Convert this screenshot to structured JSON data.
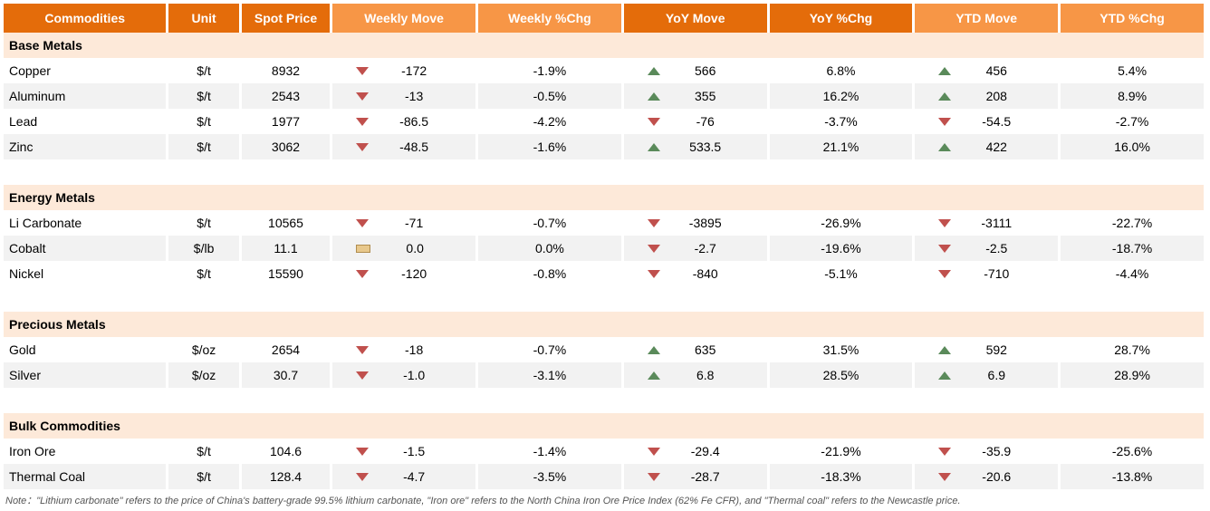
{
  "colors": {
    "header_dark": "#e46c0a",
    "header_light": "#f79646",
    "section_bg": "#fde9d9",
    "row_alt": "#f2f2f2",
    "up_arrow": "#5a8a5a",
    "down_arrow": "#c0504d",
    "flat_fill": "#e8c88c",
    "text": "#000000",
    "header_text": "#ffffff"
  },
  "headers": {
    "commodities": "Commodities",
    "unit": "Unit",
    "spot": "Spot Price",
    "wmove": "Weekly Move",
    "wpct": "Weekly %Chg",
    "ymove": "YoY Move",
    "ypct": "YoY  %Chg",
    "ytdmove": "YTD Move",
    "ytdpct": "YTD %Chg"
  },
  "sections": [
    {
      "title": "Base Metals",
      "rows": [
        {
          "name": "Copper",
          "unit": "$/t",
          "spot": "8932",
          "wmove": "-172",
          "wdir": "down",
          "wpct": "-1.9%",
          "ymove": "566",
          "ydir": "up",
          "ypct": "6.8%",
          "ytdmove": "456",
          "ytddir": "up",
          "ytdpct": "5.4%"
        },
        {
          "name": "Aluminum",
          "unit": "$/t",
          "spot": "2543",
          "wmove": "-13",
          "wdir": "down",
          "wpct": "-0.5%",
          "ymove": "355",
          "ydir": "up",
          "ypct": "16.2%",
          "ytdmove": "208",
          "ytddir": "up",
          "ytdpct": "8.9%"
        },
        {
          "name": "Lead",
          "unit": "$/t",
          "spot": "1977",
          "wmove": "-86.5",
          "wdir": "down",
          "wpct": "-4.2%",
          "ymove": "-76",
          "ydir": "down",
          "ypct": "-3.7%",
          "ytdmove": "-54.5",
          "ytddir": "down",
          "ytdpct": "-2.7%"
        },
        {
          "name": "Zinc",
          "unit": "$/t",
          "spot": "3062",
          "wmove": "-48.5",
          "wdir": "down",
          "wpct": "-1.6%",
          "ymove": "533.5",
          "ydir": "up",
          "ypct": "21.1%",
          "ytdmove": "422",
          "ytddir": "up",
          "ytdpct": "16.0%"
        }
      ]
    },
    {
      "title": "Energy Metals",
      "rows": [
        {
          "name": "Li Carbonate",
          "unit": "$/t",
          "spot": "10565",
          "wmove": "-71",
          "wdir": "down",
          "wpct": "-0.7%",
          "ymove": "-3895",
          "ydir": "down",
          "ypct": "-26.9%",
          "ytdmove": "-3111",
          "ytddir": "down",
          "ytdpct": "-22.7%"
        },
        {
          "name": "Cobalt",
          "unit": "$/lb",
          "spot": "11.1",
          "wmove": "0.0",
          "wdir": "flat",
          "wpct": "0.0%",
          "ymove": "-2.7",
          "ydir": "down",
          "ypct": "-19.6%",
          "ytdmove": "-2.5",
          "ytddir": "down",
          "ytdpct": "-18.7%"
        },
        {
          "name": "Nickel",
          "unit": "$/t",
          "spot": "15590",
          "wmove": "-120",
          "wdir": "down",
          "wpct": "-0.8%",
          "ymove": "-840",
          "ydir": "down",
          "ypct": "-5.1%",
          "ytdmove": "-710",
          "ytddir": "down",
          "ytdpct": "-4.4%"
        }
      ]
    },
    {
      "title": "Precious Metals",
      "rows": [
        {
          "name": "Gold",
          "unit": "$/oz",
          "spot": "2654",
          "wmove": "-18",
          "wdir": "down",
          "wpct": "-0.7%",
          "ymove": "635",
          "ydir": "up",
          "ypct": "31.5%",
          "ytdmove": "592",
          "ytddir": "up",
          "ytdpct": "28.7%"
        },
        {
          "name": "Silver",
          "unit": "$/oz",
          "spot": "30.7",
          "wmove": "-1.0",
          "wdir": "down",
          "wpct": "-3.1%",
          "ymove": "6.8",
          "ydir": "up",
          "ypct": "28.5%",
          "ytdmove": "6.9",
          "ytddir": "up",
          "ytdpct": "28.9%"
        }
      ]
    },
    {
      "title": "Bulk Commodities",
      "rows": [
        {
          "name": "Iron Ore",
          "unit": "$/t",
          "spot": "104.6",
          "wmove": "-1.5",
          "wdir": "down",
          "wpct": "-1.4%",
          "ymove": "-29.4",
          "ydir": "down",
          "ypct": "-21.9%",
          "ytdmove": "-35.9",
          "ytddir": "down",
          "ytdpct": "-25.6%"
        },
        {
          "name": "Thermal Coal",
          "unit": "$/t",
          "spot": "128.4",
          "wmove": "-4.7",
          "wdir": "down",
          "wpct": "-3.5%",
          "ymove": "-28.7",
          "ydir": "down",
          "ypct": "-18.3%",
          "ytdmove": "-20.6",
          "ytddir": "down",
          "ytdpct": "-13.8%"
        }
      ]
    }
  ],
  "note": "Note：\"Lithium carbonate\" refers to the price of China's battery-grade 99.5% lithium carbonate, \"Iron ore\" refers to the North China Iron Ore Price Index (62% Fe CFR), and \"Thermal coal\" refers to the Newcastle price."
}
